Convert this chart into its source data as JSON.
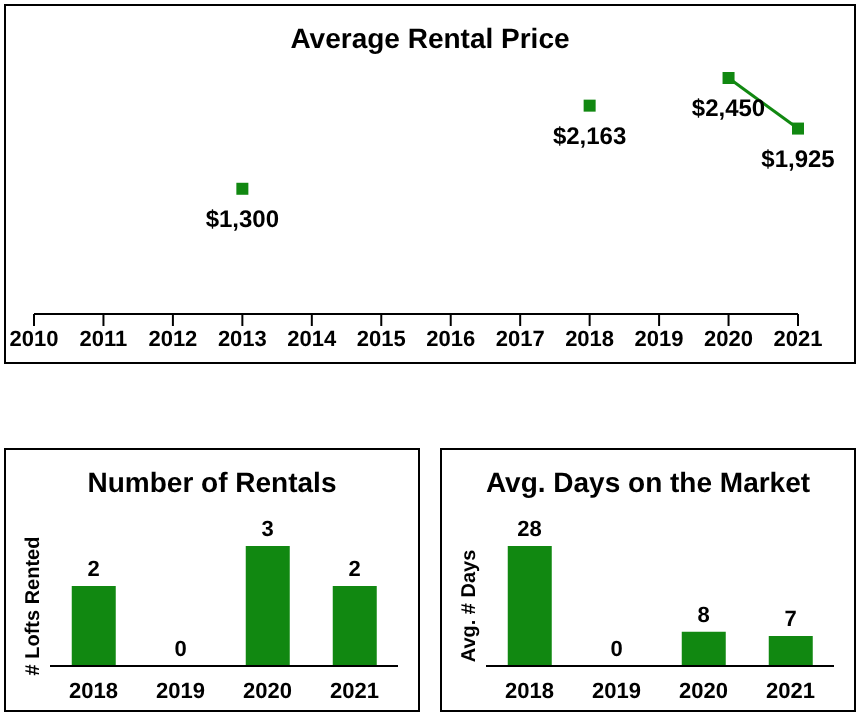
{
  "chart_data": [
    {
      "type": "line",
      "title": "Average Rental Price",
      "categories": [
        "2010",
        "2011",
        "2012",
        "2013",
        "2014",
        "2015",
        "2016",
        "2017",
        "2018",
        "2019",
        "2020",
        "2021"
      ],
      "series": [
        {
          "color": "#118811",
          "values": [
            null,
            null,
            null,
            1300,
            null,
            null,
            null,
            null,
            2163,
            null,
            2450,
            1925
          ],
          "value_labels": [
            null,
            null,
            null,
            "$1,300",
            null,
            null,
            null,
            null,
            "$2,163",
            null,
            "$2,450",
            "$1,925"
          ]
        }
      ],
      "marker": "square",
      "tick_labels": "x"
    },
    {
      "type": "bar",
      "title": "Number of Rentals",
      "ylabel": "# Lofts Rented",
      "categories": [
        "2018",
        "2019",
        "2020",
        "2021"
      ],
      "values": [
        2,
        0,
        3,
        2
      ],
      "color": "#118811",
      "data_labels": true,
      "relative": false,
      "tick_labels": "x"
    },
    {
      "type": "bar",
      "title": "Avg. Days on the Market",
      "ylabel": "Avg. # Days",
      "categories": [
        "2018",
        "2019",
        "2020",
        "2021"
      ],
      "values": [
        28,
        0,
        8,
        7
      ],
      "color": "#118811",
      "data_labels": true,
      "tick_labels": "x"
    }
  ]
}
